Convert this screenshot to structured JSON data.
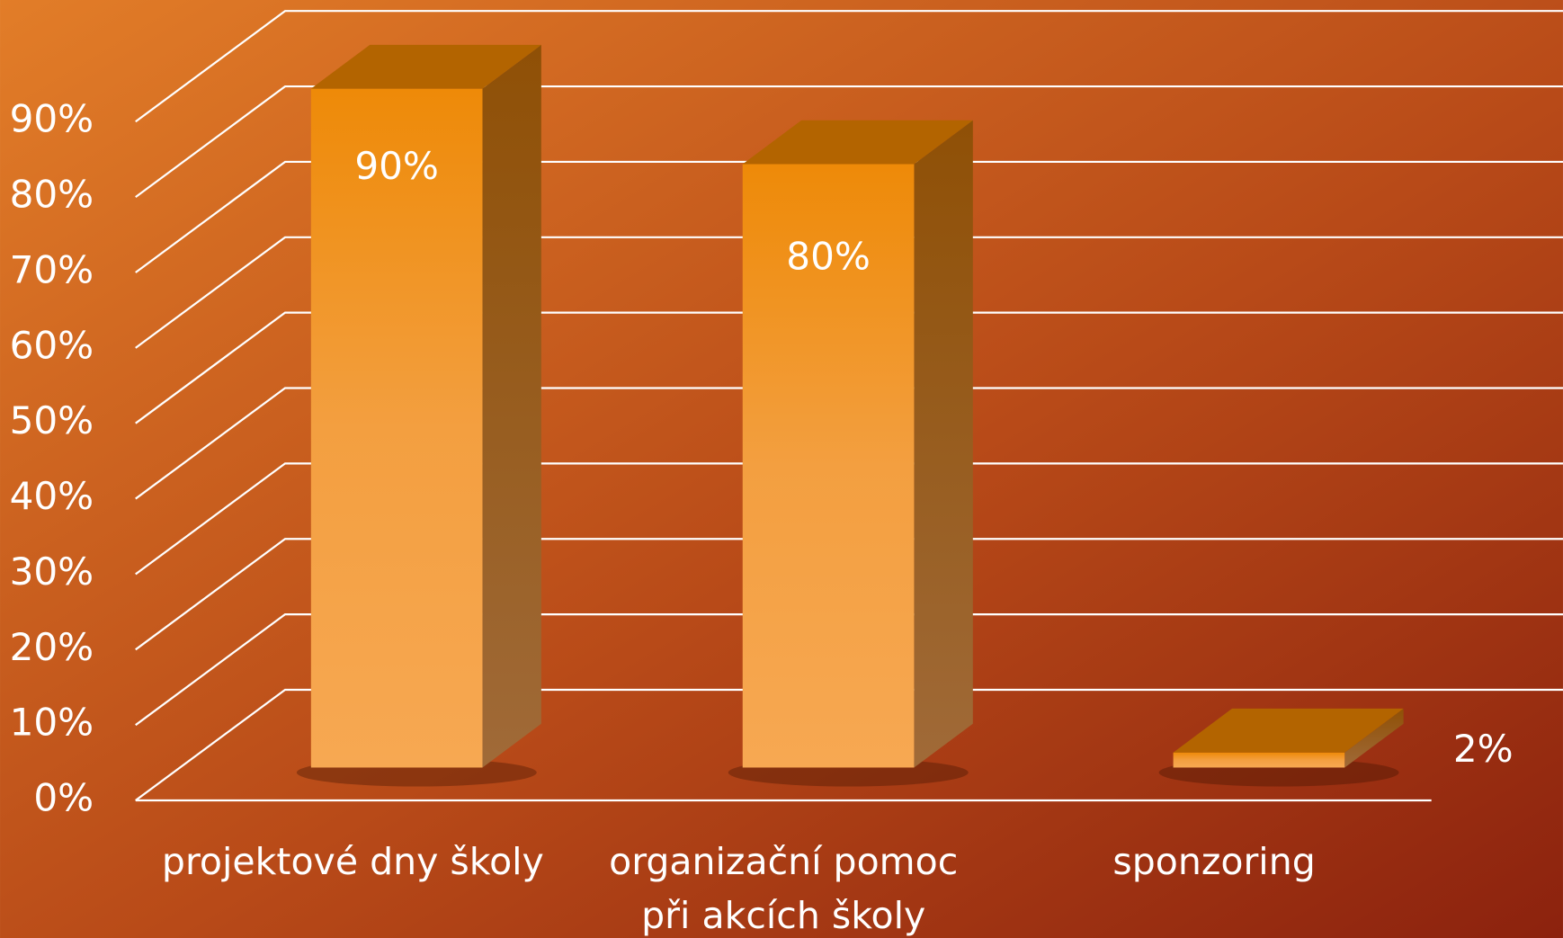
{
  "chart_data": {
    "type": "bar3d",
    "categories": [
      "projektové dny školy",
      "organizační pomoc při akcích školy",
      "sponzoring"
    ],
    "values": [
      90,
      80,
      2
    ],
    "value_labels": [
      "90%",
      "80%",
      "2%"
    ],
    "color": "#f39a35",
    "ylim": [
      0,
      90
    ],
    "yticks": [
      {
        "value": 0,
        "label": "0%"
      },
      {
        "value": 10,
        "label": "10%"
      },
      {
        "value": 20,
        "label": "20%"
      },
      {
        "value": 30,
        "label": "30%"
      },
      {
        "value": 40,
        "label": "40%"
      },
      {
        "value": 50,
        "label": "50%"
      },
      {
        "value": 60,
        "label": "60%"
      },
      {
        "value": 70,
        "label": "70%"
      },
      {
        "value": 80,
        "label": "80%"
      },
      {
        "value": 90,
        "label": "90%"
      }
    ],
    "grid": true
  }
}
